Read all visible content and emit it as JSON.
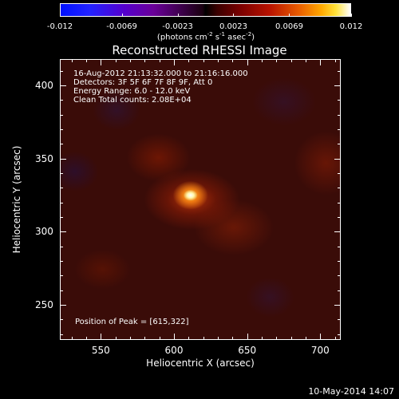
{
  "chart_data": {
    "type": "heatmap",
    "title": "Reconstructed RHESSI Image",
    "xlabel": "Heliocentric X (arcsec)",
    "ylabel": "Heliocentric Y (arcsec)",
    "xlim": [
      522,
      714
    ],
    "ylim": [
      226,
      418
    ],
    "xticks": [
      550,
      600,
      650,
      700
    ],
    "yticks": [
      250,
      300,
      350,
      400
    ],
    "colorbar": {
      "ticks": [
        "-0.012",
        "-0.0069",
        "-0.0023",
        "0.0023",
        "0.0069",
        "0.012"
      ],
      "tick_values": [
        -0.012,
        -0.0069,
        -0.0023,
        0.0023,
        0.0069,
        0.012
      ],
      "range": [
        -0.012,
        0.012
      ],
      "unit_label": "(photons cm<sup>-2</sup> s<sup>-1</sup> asec<sup>-2</sup>)"
    },
    "peak": {
      "x": 615,
      "y": 322
    },
    "info_lines": [
      "16-Aug-2012 21:13:32.000 to 21:16:16.000",
      "Detectors: 3F 5F 6F 7F 8F 9F, Att 0",
      "Energy Range: 6.0 - 12.0 keV",
      "Clean    Total counts: 2.08E+04"
    ],
    "peak_label": "Position of Peak = [615,322]"
  },
  "footer": {
    "timestamp": "10-May-2014 14:07"
  }
}
